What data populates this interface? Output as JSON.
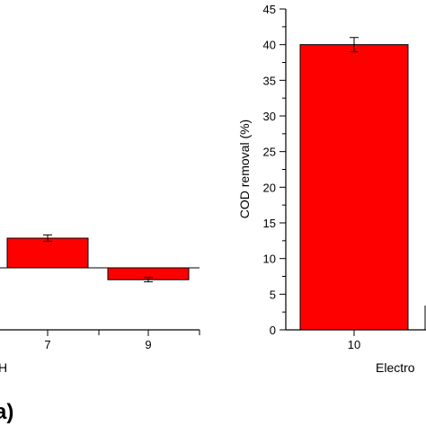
{
  "chart_data": [
    {
      "type": "bar",
      "panel_label": "a)",
      "categories": [
        "7",
        "9"
      ],
      "values": [
        5.5,
        -2.2
      ],
      "errors": [
        0.6,
        0.4
      ],
      "xlabel": "H",
      "ylabel": "",
      "ylim": [
        -12,
        25
      ],
      "color": "#ff0000",
      "grid": false
    },
    {
      "type": "bar",
      "categories": [
        "10"
      ],
      "values": [
        40
      ],
      "errors": [
        1.0
      ],
      "xlabel": "Electro",
      "ylabel": "COD removal (%)",
      "ylim": [
        0,
        45
      ],
      "yticks": [
        0,
        5,
        10,
        15,
        20,
        25,
        30,
        35,
        40,
        45
      ],
      "color": "#ff0000",
      "grid": false
    }
  ]
}
